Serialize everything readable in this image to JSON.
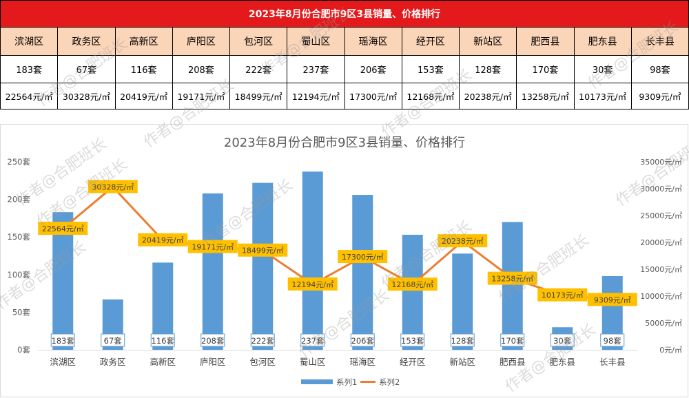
{
  "table": {
    "title": "2023年8月份合肥市9区3县销量、价格排行",
    "districts": [
      "滨湖区",
      "政务区",
      "高新区",
      "庐阳区",
      "包河区",
      "蜀山区",
      "瑶海区",
      "经开区",
      "新站区",
      "肥西县",
      "肥东县",
      "长丰县"
    ],
    "sales": [
      "183套",
      "67套",
      "116套",
      "208套",
      "222套",
      "237套",
      "206套",
      "153套",
      "128套",
      "170套",
      "30套",
      "98套"
    ],
    "prices": [
      "22564元/㎡",
      "30328元/㎡",
      "20419元/㎡",
      "19171元/㎡",
      "18499元/㎡",
      "12194元/㎡",
      "17300元/㎡",
      "12168元/㎡",
      "20238元/㎡",
      "13258元/㎡",
      "10173元/㎡",
      "9309元/㎡"
    ]
  },
  "chart_data": {
    "type": "bar+line",
    "title": "2023年8月份合肥市9区3县销量、价格排行",
    "categories": [
      "滨湖区",
      "政务区",
      "高新区",
      "庐阳区",
      "包河区",
      "蜀山区",
      "瑶海区",
      "经开区",
      "新站区",
      "肥西县",
      "肥东县",
      "长丰县"
    ],
    "series": [
      {
        "name": "系列1",
        "type": "bar",
        "axis": "left",
        "values": [
          183,
          67,
          116,
          208,
          222,
          237,
          206,
          153,
          128,
          170,
          30,
          98
        ],
        "labels": [
          "183套",
          "67套",
          "116套",
          "208套",
          "222套",
          "237套",
          "206套",
          "153套",
          "128套",
          "170套",
          "30套",
          "98套"
        ],
        "color": "#5b9bd5"
      },
      {
        "name": "系列2",
        "type": "line",
        "axis": "right",
        "values": [
          22564,
          30328,
          20419,
          19171,
          18499,
          12194,
          17300,
          12168,
          20238,
          13258,
          10173,
          9309
        ],
        "labels": [
          "22564元/㎡",
          "30328元/㎡",
          "20419元/㎡",
          "19171元/㎡",
          "18499元/㎡",
          "12194元/㎡",
          "17300元/㎡",
          "12168元/㎡",
          "20238元/㎡",
          "13258元/㎡",
          "10173元/㎡",
          "9309元/㎡"
        ],
        "color": "#ed7d31"
      }
    ],
    "y_left": {
      "min": 0,
      "max": 250,
      "ticks": [
        "0套",
        "50套",
        "100套",
        "150套",
        "200套",
        "250套"
      ]
    },
    "y_right": {
      "min": 0,
      "max": 35000,
      "ticks": [
        "0元/㎡",
        "5000元/㎡",
        "10000元/㎡",
        "15000元/㎡",
        "20000元/㎡",
        "25000元/㎡",
        "30000元/㎡",
        "35000元/㎡"
      ]
    },
    "grid": false,
    "legend_position": "bottom",
    "label_colors": {
      "price_label_bg": "#ffc000",
      "sales_label_border": "#5b9bd5"
    }
  },
  "watermark": "作者@合肥班长"
}
